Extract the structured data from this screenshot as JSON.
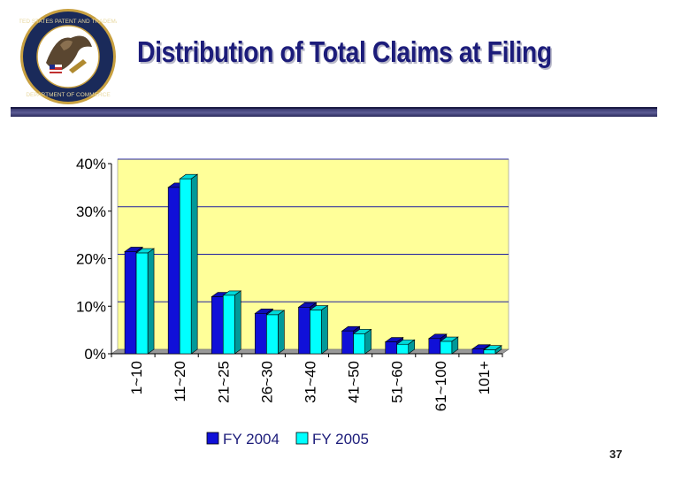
{
  "slide": {
    "title": "Distribution of Total Claims at Filing",
    "page_number": "37",
    "seal_text": "UNITED STATES PATENT AND TRADEMARK OFFICE · DEPARTMENT OF COMMERCE",
    "colors": {
      "title": "#1c1c7a",
      "rule": "#3a3a70"
    }
  },
  "chart_data": {
    "type": "bar",
    "categories": [
      "1~10",
      "11~20",
      "21~25",
      "26~30",
      "31~40",
      "41~50",
      "51~60",
      "61~100",
      "101+"
    ],
    "series": [
      {
        "name": "FY 2004",
        "color": "#1010d8",
        "values": [
          21.5,
          35,
          12,
          8.5,
          9.8,
          4.8,
          2.5,
          3.2,
          1.0
        ]
      },
      {
        "name": "FY 2005",
        "color": "#00ffff",
        "values": [
          21.2,
          36.8,
          12.3,
          8.2,
          9.2,
          4.2,
          2.0,
          2.6,
          0.8
        ]
      }
    ],
    "y_ticks": [
      "0%",
      "10%",
      "20%",
      "30%",
      "40%"
    ],
    "ylim": [
      0,
      40
    ],
    "plot_background": "#ffff99",
    "legend_position": "bottom",
    "grid": true
  }
}
